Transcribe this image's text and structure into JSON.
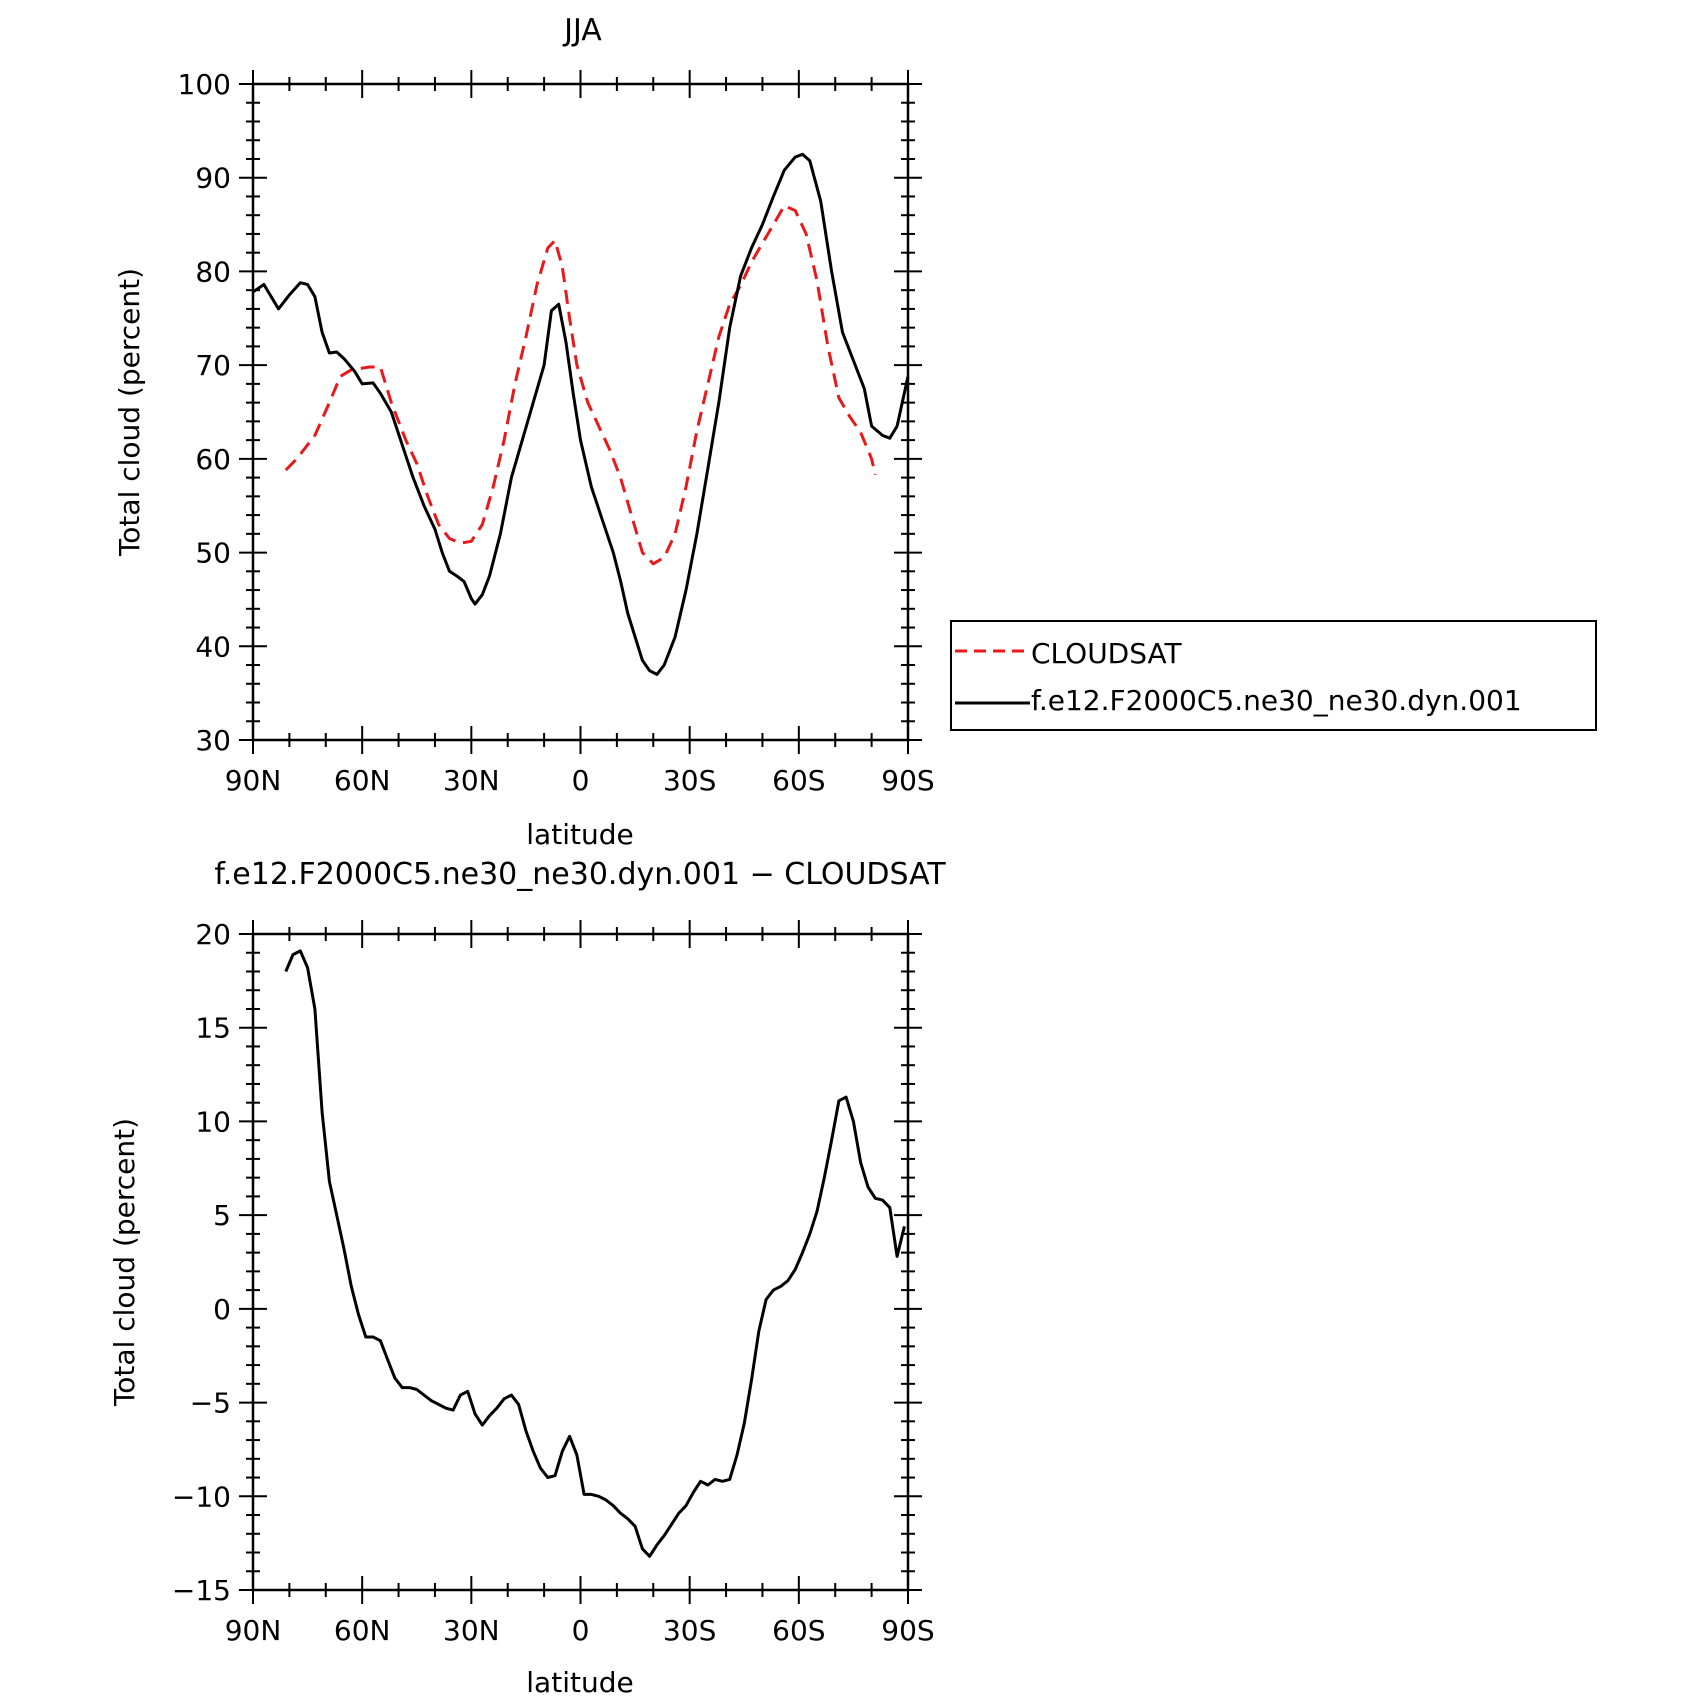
{
  "chart_data": [
    {
      "type": "line",
      "title": "JJA",
      "xlabel": "latitude",
      "ylabel": "Total cloud (percent)",
      "xlim": [
        90,
        -90
      ],
      "ylim": [
        30,
        100
      ],
      "x_ticks": [
        90,
        60,
        30,
        0,
        -30,
        -60,
        -90
      ],
      "x_tick_labels": [
        "90N",
        "60N",
        "30N",
        "0",
        "30S",
        "60S",
        "90S"
      ],
      "y_ticks": [
        30,
        40,
        50,
        60,
        70,
        80,
        90,
        100
      ],
      "y_tick_labels": [
        "30",
        "40",
        "50",
        "60",
        "70",
        "80",
        "90",
        "100"
      ],
      "legend_position": "right",
      "series": [
        {
          "name": "CLOUDSAT",
          "color": "#e8191b",
          "dash": "dashed",
          "points": [
            [
              81,
              58.8
            ],
            [
              78,
              60
            ],
            [
              73,
              62.5
            ],
            [
              69,
              66
            ],
            [
              66,
              68.8
            ],
            [
              63,
              69.5
            ],
            [
              58,
              69.8
            ],
            [
              55,
              69.8
            ],
            [
              52,
              66
            ],
            [
              48,
              62
            ],
            [
              45,
              59.5
            ],
            [
              42,
              56
            ],
            [
              39,
              53
            ],
            [
              36,
              51.5
            ],
            [
              33,
              51
            ],
            [
              30,
              51.2
            ],
            [
              27,
              53
            ],
            [
              24,
              57
            ],
            [
              21,
              62
            ],
            [
              18,
              68
            ],
            [
              15,
              73
            ],
            [
              12,
              78.5
            ],
            [
              9,
              82.5
            ],
            [
              7,
              83.3
            ],
            [
              5,
              80.5
            ],
            [
              3,
              75
            ],
            [
              1,
              70
            ],
            [
              -2,
              66
            ],
            [
              -5,
              63.5
            ],
            [
              -8,
              61
            ],
            [
              -11,
              58
            ],
            [
              -14,
              54
            ],
            [
              -17,
              50
            ],
            [
              -20,
              48.8
            ],
            [
              -23,
              49.5
            ],
            [
              -26,
              52
            ],
            [
              -29,
              57
            ],
            [
              -32,
              63
            ],
            [
              -35,
              68
            ],
            [
              -38,
              73
            ],
            [
              -41,
              76.5
            ],
            [
              -44,
              78.5
            ],
            [
              -47,
              81
            ],
            [
              -50,
              83
            ],
            [
              -53,
              85
            ],
            [
              -56,
              87
            ],
            [
              -59,
              86.5
            ],
            [
              -62,
              84
            ],
            [
              -65,
              79
            ],
            [
              -68,
              72
            ],
            [
              -71,
              66.5
            ],
            [
              -74,
              64.5
            ],
            [
              -77,
              62.8
            ],
            [
              -80,
              60
            ],
            [
              -81,
              58.3
            ]
          ]
        },
        {
          "name": "f.e12.F2000C5.ne30_ne30.dyn.001",
          "color": "#000000",
          "dash": "solid",
          "points": [
            [
              90,
              77.8
            ],
            [
              87,
              78.6
            ],
            [
              83,
              76
            ],
            [
              80,
              77.5
            ],
            [
              77,
              78.8
            ],
            [
              75,
              78.6
            ],
            [
              73,
              77.3
            ],
            [
              71,
              73.5
            ],
            [
              69,
              71.3
            ],
            [
              67,
              71.4
            ],
            [
              65,
              70.7
            ],
            [
              62,
              69.3
            ],
            [
              60,
              68
            ],
            [
              57,
              68.1
            ],
            [
              55,
              67
            ],
            [
              52,
              65
            ],
            [
              49,
              61.5
            ],
            [
              46,
              58
            ],
            [
              43,
              55
            ],
            [
              40,
              52.5
            ],
            [
              38,
              50
            ],
            [
              36,
              48
            ],
            [
              34,
              47.5
            ],
            [
              32,
              46.9
            ],
            [
              30,
              45.1
            ],
            [
              29,
              44.5
            ],
            [
              27,
              45.5
            ],
            [
              25,
              47.5
            ],
            [
              22,
              52
            ],
            [
              19,
              58
            ],
            [
              16,
              62
            ],
            [
              13,
              66
            ],
            [
              10,
              70
            ],
            [
              8,
              75.8
            ],
            [
              6,
              76.5
            ],
            [
              4,
              72.5
            ],
            [
              2,
              67
            ],
            [
              0,
              62
            ],
            [
              -3,
              57
            ],
            [
              -6,
              53.5
            ],
            [
              -9,
              50
            ],
            [
              -11,
              47
            ],
            [
              -13,
              43.5
            ],
            [
              -15,
              41
            ],
            [
              -17,
              38.5
            ],
            [
              -19,
              37.4
            ],
            [
              -21,
              37
            ],
            [
              -23,
              38
            ],
            [
              -26,
              41
            ],
            [
              -29,
              46
            ],
            [
              -32,
              52
            ],
            [
              -35,
              59
            ],
            [
              -38,
              66
            ],
            [
              -41,
              74
            ],
            [
              -44,
              79.5
            ],
            [
              -47,
              82.5
            ],
            [
              -50,
              85
            ],
            [
              -53,
              88
            ],
            [
              -56,
              90.8
            ],
            [
              -59,
              92.2
            ],
            [
              -61,
              92.5
            ],
            [
              -63,
              91.8
            ],
            [
              -66,
              87.5
            ],
            [
              -69,
              80
            ],
            [
              -72,
              73.5
            ],
            [
              -75,
              70.5
            ],
            [
              -78,
              67.5
            ],
            [
              -80,
              63.5
            ],
            [
              -83,
              62.5
            ],
            [
              -85,
              62.2
            ],
            [
              -87,
              63.5
            ],
            [
              -90,
              68.8
            ]
          ]
        }
      ]
    },
    {
      "type": "line",
      "title": "f.e12.F2000C5.ne30_ne30.dyn.001 − CLOUDSAT",
      "xlabel": "latitude",
      "ylabel": "Total cloud (percent)",
      "xlim": [
        90,
        -90
      ],
      "ylim": [
        -15,
        20
      ],
      "x_ticks": [
        90,
        60,
        30,
        0,
        -30,
        -60,
        -90
      ],
      "x_tick_labels": [
        "90N",
        "60N",
        "30N",
        "0",
        "30S",
        "60S",
        "90S"
      ],
      "y_ticks": [
        -15,
        -10,
        -5,
        0,
        5,
        10,
        15,
        20
      ],
      "y_tick_labels": [
        "−15",
        "−10",
        "−5",
        "0",
        "5",
        "10",
        "15",
        "20"
      ],
      "series": [
        {
          "color": "#000000",
          "dash": "solid",
          "points": [
            [
              81,
              18
            ],
            [
              79,
              18.9
            ],
            [
              77,
              19.1
            ],
            [
              75,
              18.2
            ],
            [
              73,
              16
            ],
            [
              71,
              10.5
            ],
            [
              69,
              6.8
            ],
            [
              67,
              5
            ],
            [
              65,
              3.2
            ],
            [
              63,
              1.2
            ],
            [
              61,
              -0.3
            ],
            [
              59,
              -1.5
            ],
            [
              57,
              -1.5
            ],
            [
              55,
              -1.7
            ],
            [
              53,
              -2.7
            ],
            [
              51,
              -3.7
            ],
            [
              49,
              -4.2
            ],
            [
              47,
              -4.2
            ],
            [
              45,
              -4.3
            ],
            [
              43,
              -4.6
            ],
            [
              41,
              -4.9
            ],
            [
              39,
              -5.1
            ],
            [
              37,
              -5.3
            ],
            [
              35,
              -5.4
            ],
            [
              33,
              -4.6
            ],
            [
              31,
              -4.4
            ],
            [
              29,
              -5.6
            ],
            [
              27,
              -6.2
            ],
            [
              25,
              -5.7
            ],
            [
              23,
              -5.3
            ],
            [
              21,
              -4.8
            ],
            [
              19,
              -4.6
            ],
            [
              17,
              -5.1
            ],
            [
              15,
              -6.5
            ],
            [
              13,
              -7.6
            ],
            [
              11,
              -8.5
            ],
            [
              9,
              -9
            ],
            [
              7,
              -8.9
            ],
            [
              5,
              -7.6
            ],
            [
              3,
              -6.8
            ],
            [
              1,
              -7.8
            ],
            [
              -1,
              -9.9
            ],
            [
              -3,
              -9.9
            ],
            [
              -5,
              -10
            ],
            [
              -7,
              -10.2
            ],
            [
              -9,
              -10.5
            ],
            [
              -11,
              -10.9
            ],
            [
              -13,
              -11.2
            ],
            [
              -15,
              -11.6
            ],
            [
              -17,
              -12.8
            ],
            [
              -19,
              -13.2
            ],
            [
              -21,
              -12.6
            ],
            [
              -23,
              -12.1
            ],
            [
              -25,
              -11.5
            ],
            [
              -27,
              -10.9
            ],
            [
              -29,
              -10.5
            ],
            [
              -31,
              -9.8
            ],
            [
              -33,
              -9.2
            ],
            [
              -35,
              -9.4
            ],
            [
              -37,
              -9.1
            ],
            [
              -39,
              -9.2
            ],
            [
              -41,
              -9.1
            ],
            [
              -43,
              -7.8
            ],
            [
              -45,
              -6.1
            ],
            [
              -47,
              -3.8
            ],
            [
              -49,
              -1.2
            ],
            [
              -51,
              0.5
            ],
            [
              -53,
              1
            ],
            [
              -55,
              1.2
            ],
            [
              -57,
              1.5
            ],
            [
              -59,
              2.1
            ],
            [
              -61,
              3
            ],
            [
              -63,
              4
            ],
            [
              -65,
              5.2
            ],
            [
              -67,
              7
            ],
            [
              -69,
              9
            ],
            [
              -71,
              11.1
            ],
            [
              -73,
              11.3
            ],
            [
              -75,
              10
            ],
            [
              -77,
              7.8
            ],
            [
              -79,
              6.5
            ],
            [
              -81,
              5.9
            ],
            [
              -83,
              5.8
            ],
            [
              -85,
              5.4
            ],
            [
              -87,
              2.8
            ],
            [
              -89,
              4.4
            ]
          ]
        }
      ]
    }
  ]
}
